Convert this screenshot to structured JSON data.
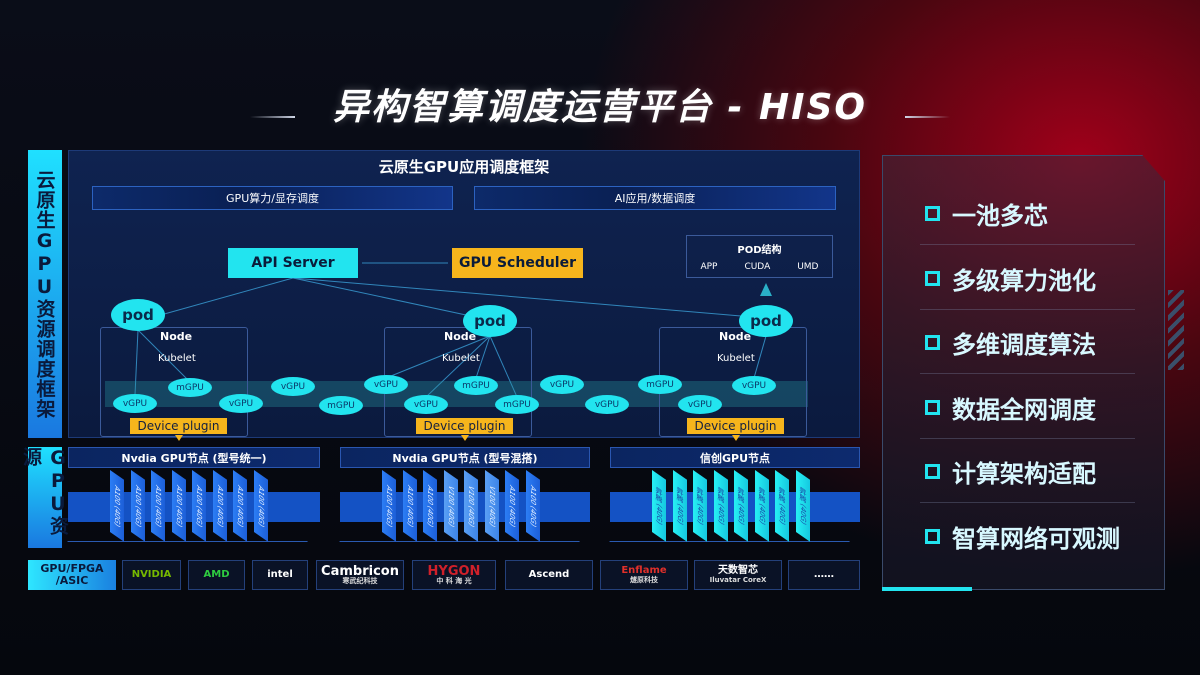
{
  "title": "异构智算调度运营平台 - HISO",
  "framework": {
    "side_label": "云原生GPU资源调度框架",
    "title": "云原生GPU应用调度框架",
    "bars": [
      "GPU算力/显存调度",
      "AI应用/数据调度"
    ],
    "api_server": "API Server",
    "gpu_scheduler": "GPU Scheduler",
    "pod_structure": {
      "title": "POD结构",
      "items": [
        "APP",
        "CUDA",
        "UMD"
      ]
    },
    "pod_label": "pod",
    "node_label": "Node",
    "kubelet_label": "Kubelet",
    "device_plugin": "Device plugin",
    "gpu_units": [
      "vGPU",
      "mGPU",
      "vGPU",
      "vGPU",
      "mGPU",
      "vGPU",
      "vGPU",
      "mGPU",
      "mGPU",
      "vGPU",
      "vGPU",
      "mGPU",
      "vGPU",
      "vGPU"
    ]
  },
  "gpu_resources": {
    "side_label": "GPU资源",
    "nodes": [
      {
        "title": "Nvdia GPU节点 (型号统一)",
        "cards": [
          "A100 (40G)",
          "A100 (40G)",
          "A100 (40G)",
          "A100 (40G)",
          "A100 (40G)",
          "A100 (40G)",
          "A100 (40G)",
          "A100 (40G)"
        ]
      },
      {
        "title": "Nvdia GPU节点 (型号混搭)",
        "cards": [
          "A100 (40G)",
          "A100 (40G)",
          "A100 (40G)",
          "V100 (40G)",
          "V100 (40G)",
          "V100 (40G)",
          "A100 (40G)",
          "A100 (40G)"
        ]
      },
      {
        "title": "信创GPU节点",
        "cards": [
          "昇腾 (40G)",
          "昇腾 (40G)",
          "昇腾 (40G)",
          "昇腾 (40G)",
          "昇腾 (40G)",
          "昇腾 (40G)",
          "昇腾 (40G)",
          "昇腾 (40G)"
        ]
      }
    ]
  },
  "vendors": {
    "label": "GPU/FPGA /ASIC",
    "items": [
      {
        "name": "NVIDIA",
        "sub": "",
        "color": "#76b900"
      },
      {
        "name": "AMD",
        "sub": "",
        "color": "#2ecc40"
      },
      {
        "name": "intel",
        "sub": "",
        "color": "#ffffff"
      },
      {
        "name": "Cambricon",
        "sub": "寒武纪科技",
        "color": "#ffffff"
      },
      {
        "name": "HYGON",
        "sub": "中 科 海 光",
        "color": "#d0202a"
      },
      {
        "name": "Ascend",
        "sub": "",
        "color": "#ffffff"
      },
      {
        "name": "Enflame",
        "sub": "燧原科技",
        "color": "#e0302a"
      },
      {
        "name": "天数智芯",
        "sub": "Iluvatar CoreX",
        "color": "#ffffff"
      },
      {
        "name": "……",
        "sub": "",
        "color": "#ffffff"
      }
    ]
  },
  "features": [
    "一池多芯",
    "多级算力池化",
    "多维调度算法",
    "数据全网调度",
    "计算架构适配",
    "智算网络可观测"
  ]
}
